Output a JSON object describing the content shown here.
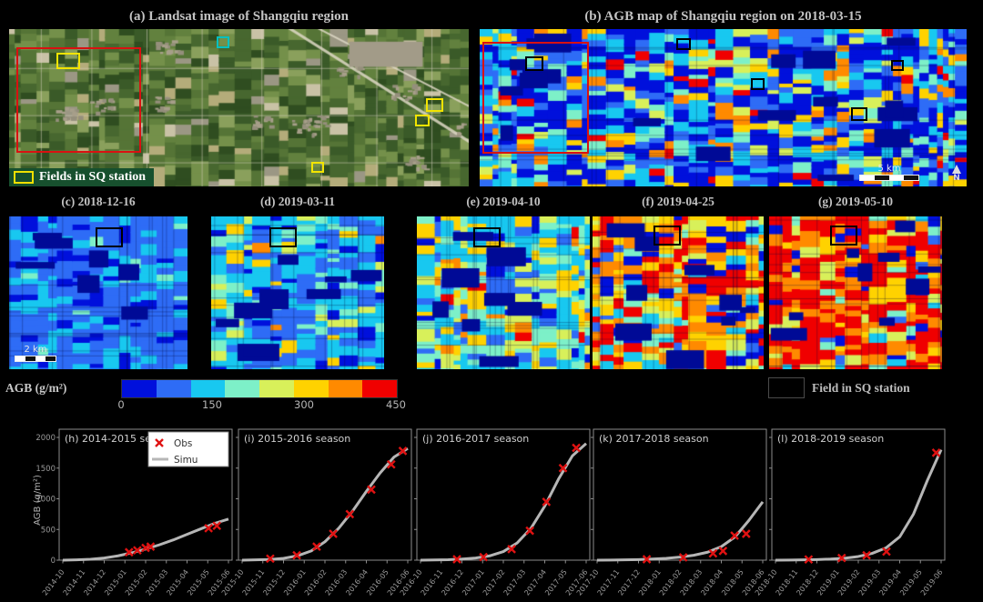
{
  "top": {
    "panel_a": {
      "title": "(a) Landsat image of Shangqiu region",
      "badge_label": "Fields in SQ station"
    },
    "panel_b": {
      "title": "(b) AGB map of Shangqiu region on 2018-03-15",
      "scalebar_label": "5 km",
      "north_label": "N"
    }
  },
  "mid_panels": [
    {
      "title": "(c) 2018-12-16",
      "scalebar_label": "2 km"
    },
    {
      "title": "(d) 2019-03-11"
    },
    {
      "title": "(e) 2019-04-10"
    },
    {
      "title": "(f) 2019-04-25"
    },
    {
      "title": "(g) 2019-05-10"
    }
  ],
  "colorbar": {
    "label": "AGB (g/m²)",
    "ticks": [
      "0",
      "150",
      "300",
      "450"
    ],
    "colors": [
      "#0010dc",
      "#2e6cf6",
      "#18c8f0",
      "#7df0c8",
      "#d8f05a",
      "#ffd200",
      "#ff8a00",
      "#f00000"
    ]
  },
  "field_legend_label": "Field in SQ station",
  "charts_common": {
    "ylabel": "AGB (g/m²)",
    "y_ticks": [
      0,
      500,
      1000,
      1500,
      2000
    ],
    "ylim": [
      0,
      2000
    ],
    "legend": {
      "obs": "Obs",
      "simu": "Simu"
    },
    "obs_color": "#e01212",
    "simu_color": "#b6b6b6"
  },
  "chart_data": [
    {
      "type": "line",
      "title": "(h) 2014-2015 season",
      "x_ticks": [
        "2014-10",
        "2014-11",
        "2014-12",
        "2015-01",
        "2015-02",
        "2015-03",
        "2015-04",
        "2015-05",
        "2015-06"
      ],
      "series": [
        {
          "name": "Simu",
          "x": [
            0,
            0.083,
            0.167,
            0.25,
            0.333,
            0.417,
            0.5,
            0.583,
            0.667,
            0.75,
            0.833,
            0.917,
            1
          ],
          "y": [
            0,
            5,
            15,
            35,
            70,
            120,
            180,
            250,
            330,
            420,
            510,
            600,
            670
          ]
        },
        {
          "name": "Obs",
          "x": [
            0.4,
            0.45,
            0.5,
            0.53,
            0.88,
            0.93
          ],
          "y": [
            130,
            160,
            200,
            220,
            520,
            560
          ]
        }
      ]
    },
    {
      "type": "line",
      "title": "(i) 2015-2016 season",
      "x_ticks": [
        "2015-10",
        "2015-11",
        "2015-12",
        "2016-01",
        "2016-02",
        "2016-03",
        "2016-04",
        "2016-05",
        "2016-06"
      ],
      "series": [
        {
          "name": "Simu",
          "x": [
            0,
            0.083,
            0.167,
            0.25,
            0.333,
            0.417,
            0.5,
            0.583,
            0.667,
            0.75,
            0.833,
            0.917,
            1
          ],
          "y": [
            0,
            5,
            12,
            30,
            70,
            150,
            300,
            520,
            800,
            1120,
            1420,
            1680,
            1820
          ]
        },
        {
          "name": "Obs",
          "x": [
            0.17,
            0.33,
            0.45,
            0.55,
            0.65,
            0.78,
            0.9,
            0.97
          ],
          "y": [
            25,
            80,
            220,
            430,
            750,
            1150,
            1560,
            1780
          ]
        }
      ]
    },
    {
      "type": "line",
      "title": "(j) 2016-2017 season",
      "x_ticks": [
        "2016-10",
        "2016-11",
        "2016-12",
        "2017-01",
        "2017-02",
        "2017-03",
        "2017-04",
        "2017-05",
        "2017-06"
      ],
      "series": [
        {
          "name": "Simu",
          "x": [
            0,
            0.083,
            0.167,
            0.25,
            0.333,
            0.417,
            0.5,
            0.583,
            0.667,
            0.75,
            0.833,
            0.917,
            1
          ],
          "y": [
            0,
            3,
            8,
            18,
            35,
            70,
            140,
            280,
            520,
            880,
            1320,
            1700,
            1900
          ]
        },
        {
          "name": "Obs",
          "x": [
            0.22,
            0.38,
            0.55,
            0.66,
            0.76,
            0.86,
            0.94
          ],
          "y": [
            15,
            50,
            180,
            480,
            950,
            1500,
            1830
          ]
        }
      ]
    },
    {
      "type": "line",
      "title": "(k) 2017-2018 season",
      "x_ticks": [
        "2017-10",
        "2017-11",
        "2017-12",
        "2018-01",
        "2018-02",
        "2018-03",
        "2018-04",
        "2018-05",
        "2018-06"
      ],
      "series": [
        {
          "name": "Simu",
          "x": [
            0,
            0.083,
            0.167,
            0.25,
            0.333,
            0.417,
            0.5,
            0.583,
            0.667,
            0.75,
            0.833,
            0.917,
            1
          ],
          "y": [
            0,
            2,
            5,
            10,
            18,
            30,
            50,
            80,
            130,
            220,
            380,
            650,
            950
          ]
        },
        {
          "name": "Obs",
          "x": [
            0.3,
            0.52,
            0.7,
            0.76,
            0.83,
            0.9
          ],
          "y": [
            15,
            45,
            110,
            150,
            400,
            430
          ]
        }
      ]
    },
    {
      "type": "line",
      "title": "(l) 2018-2019 season",
      "x_ticks": [
        "2018-10",
        "2018-11",
        "2018-12",
        "2019-01",
        "2019-02",
        "2019-03",
        "2019-04",
        "2019-05",
        "2019-06"
      ],
      "series": [
        {
          "name": "Simu",
          "x": [
            0,
            0.083,
            0.167,
            0.25,
            0.333,
            0.417,
            0.5,
            0.583,
            0.667,
            0.75,
            0.833,
            0.917,
            1
          ],
          "y": [
            0,
            2,
            5,
            10,
            18,
            32,
            60,
            110,
            200,
            380,
            750,
            1300,
            1800
          ]
        },
        {
          "name": "Obs",
          "x": [
            0.2,
            0.4,
            0.55,
            0.67,
            0.97
          ],
          "y": [
            12,
            35,
            80,
            140,
            1750
          ]
        }
      ]
    }
  ],
  "map_specs": {
    "satellite_palette": [
      "#2f4d20",
      "#3a5a28",
      "#47672f",
      "#557436",
      "#62813e",
      "#74904a",
      "#8aa05c",
      "#b4ac7a",
      "#9b9784",
      "#c9c2a6"
    ],
    "satellite_weights": [
      2,
      3,
      3,
      2.5,
      2,
      1.5,
      1,
      0.8,
      0.6,
      0.4
    ],
    "agb_palette": [
      "#0010dc",
      "#2e6cf6",
      "#18c8f0",
      "#7df0c8",
      "#d8f05a",
      "#ffd200",
      "#ff8a00",
      "#f00000"
    ],
    "settlement_color": "#000a96",
    "panel_weights": {
      "b": [
        4,
        2.5,
        2.5,
        1.2,
        1,
        0.8,
        0.7,
        0.5
      ],
      "c": [
        2,
        6,
        3,
        0.5,
        0.1,
        0,
        0,
        0
      ],
      "d": [
        1.5,
        3,
        4.5,
        1.5,
        0.8,
        0.5,
        0.15,
        0.05
      ],
      "e": [
        1,
        1.5,
        3,
        2.5,
        2,
        1.5,
        0.6,
        0.2
      ],
      "f": [
        1,
        0.4,
        0.8,
        0.8,
        1.2,
        2,
        3,
        3.2
      ],
      "g": [
        1,
        0.2,
        0.4,
        0.4,
        0.8,
        1.2,
        2.8,
        4.5
      ]
    }
  }
}
